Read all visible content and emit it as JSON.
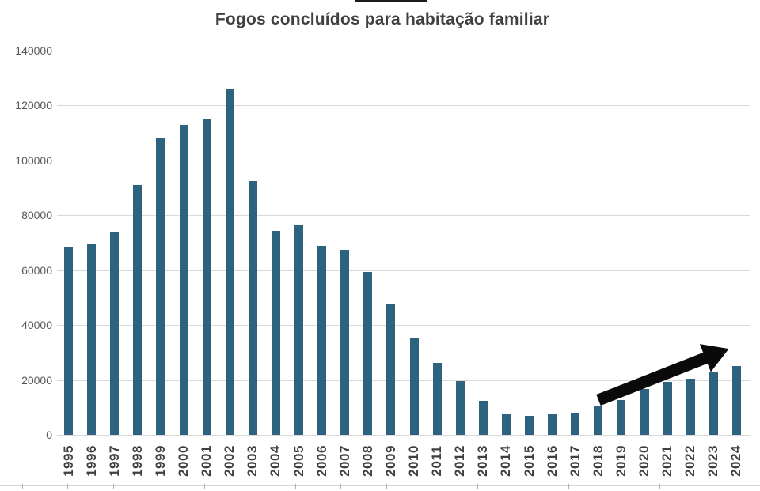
{
  "chart_data": {
    "type": "bar",
    "title": "Fogos concluídos para habitação familiar",
    "xlabel": "",
    "ylabel": "",
    "categories": [
      "1995",
      "1996",
      "1997",
      "1998",
      "1999",
      "2000",
      "2001",
      "2002",
      "2003",
      "2004",
      "2005",
      "2006",
      "2007",
      "2008",
      "2009",
      "2010",
      "2011",
      "2012",
      "2013",
      "2014",
      "2015",
      "2016",
      "2017",
      "2018",
      "2019",
      "2020",
      "2021",
      "2022",
      "2023",
      "2024"
    ],
    "values": [
      68500,
      69700,
      74100,
      90900,
      108200,
      112700,
      115200,
      125800,
      92400,
      74200,
      76300,
      68900,
      67400,
      59200,
      47700,
      35300,
      26100,
      19700,
      12500,
      7900,
      6900,
      7900,
      8100,
      10600,
      12700,
      16600,
      19400,
      20400,
      22800,
      25100
    ],
    "ylim": [
      0,
      140000
    ],
    "ytick_step": 20000,
    "ytick_labels": [
      "0",
      "20000",
      "40000",
      "60000",
      "80000",
      "100000",
      "120000",
      "140000"
    ],
    "grid": true,
    "legend": "none",
    "annotations": [
      {
        "type": "arrow",
        "description": "thick black arrow pointing up-right over the 2018-2024 bars indicating rising trend"
      }
    ]
  },
  "colors": {
    "bar": "#2e6380",
    "gridline": "#d9d9d9",
    "title_text": "#404040",
    "ytick_text": "#595959",
    "xtick_text": "#3f3f3f",
    "arrow": "#0a0a0a",
    "top_crop_bar": "#1c1c1c",
    "sheet_edge": "#d7d7d7"
  }
}
